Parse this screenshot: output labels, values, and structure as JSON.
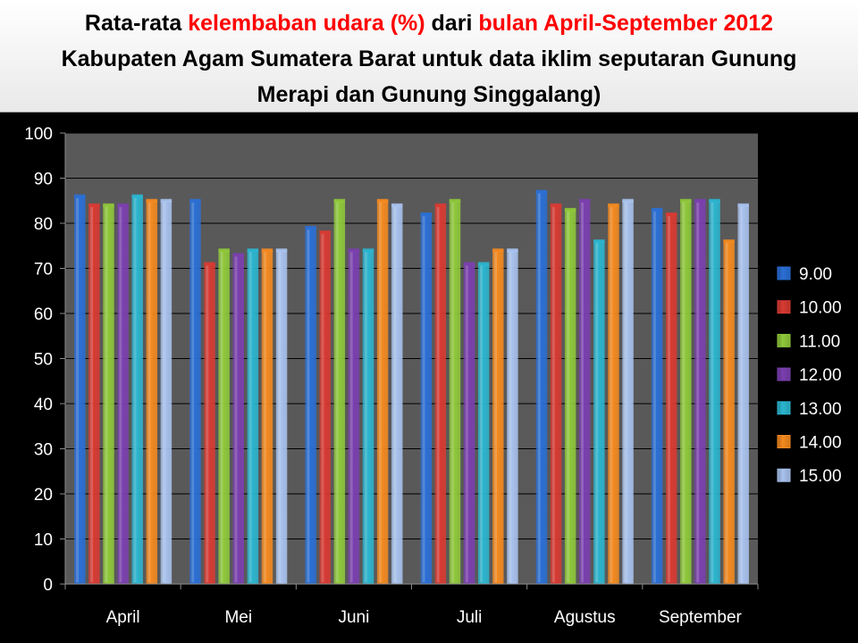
{
  "title": {
    "line1_part1": "Rata-rata ",
    "line1_part2": "kelembaban udara (%)",
    "line1_part3": " dari ",
    "line1_part4": "bulan April-September 2012",
    "line2": "Kabupaten Agam Sumatera Barat untuk data iklim seputaran Gunung",
    "line3": "Merapi dan Gunung Singgalang)"
  },
  "colors": {
    "plot_bg": "#595959",
    "grid": "#000000",
    "series": [
      "#2a6fd6",
      "#d93a32",
      "#8fc93a",
      "#7b3fb0",
      "#2bb6d0",
      "#f58a1f",
      "#a9c3ef"
    ]
  },
  "chart_data": {
    "type": "bar",
    "title": "Rata-rata kelembaban udara (%) dari bulan April-September 2012 Kabupaten Agam Sumatera Barat untuk data iklim seputaran Gunung Merapi dan Gunung Singgalang)",
    "categories": [
      "April",
      "Mei",
      "Juni",
      "Juli",
      "Agustus",
      "September"
    ],
    "series": [
      {
        "name": "9.00",
        "values": [
          86,
          85,
          79,
          82,
          87,
          83
        ]
      },
      {
        "name": "10.00",
        "values": [
          84,
          71,
          78,
          84,
          84,
          82
        ]
      },
      {
        "name": "11.00",
        "values": [
          84,
          74,
          85,
          85,
          83,
          85
        ]
      },
      {
        "name": "12.00",
        "values": [
          84,
          73,
          74,
          71,
          85,
          85
        ]
      },
      {
        "name": "13.00",
        "values": [
          86,
          74,
          74,
          71,
          76,
          85
        ]
      },
      {
        "name": "14.00",
        "values": [
          85,
          74,
          85,
          74,
          84,
          76
        ]
      },
      {
        "name": "15.00",
        "values": [
          85,
          74,
          84,
          74,
          85,
          84
        ]
      }
    ],
    "ylim": [
      0,
      100
    ],
    "yticks": [
      0,
      10,
      20,
      30,
      40,
      50,
      60,
      70,
      80,
      90,
      100
    ],
    "grid": true,
    "legend": "right"
  }
}
